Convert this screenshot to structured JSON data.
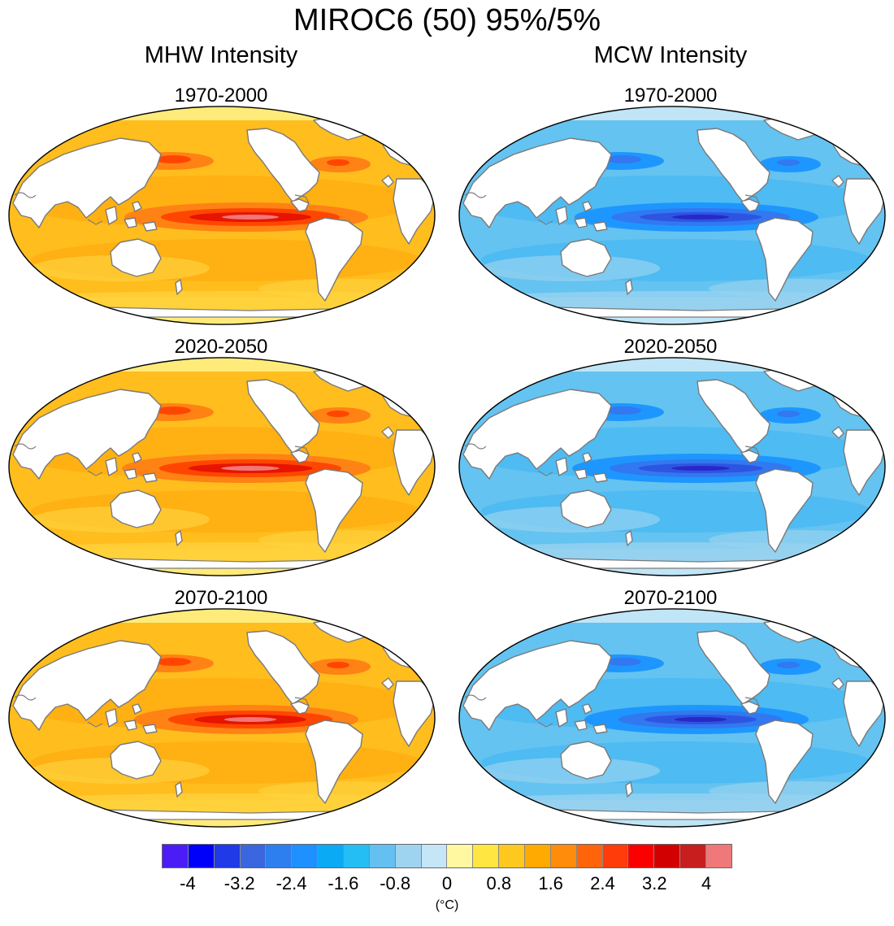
{
  "figure": {
    "title": "MIROC6 (50) 95%/5%",
    "columns": [
      "MHW Intensity",
      "MCW Intensity"
    ],
    "periods": [
      "1970-2000",
      "2020-2050",
      "2070-2100"
    ]
  },
  "colorbar": {
    "colors": [
      "#4b1cf5",
      "#0000fa",
      "#1f3ae6",
      "#3a66e0",
      "#2d7ff0",
      "#1e90ff",
      "#0aaaf5",
      "#24bef5",
      "#64c0f0",
      "#9fd4f0",
      "#c4e6f6",
      "#fff8a0",
      "#ffe640",
      "#ffc81e",
      "#ffaa00",
      "#ff8c0a",
      "#ff640a",
      "#ff3c0a",
      "#fa0000",
      "#d20000",
      "#c81e1e",
      "#f07878"
    ],
    "tick_labels": [
      "-4",
      "-3.2",
      "-2.4",
      "-1.6",
      "-0.8",
      "0",
      "0.8",
      "1.6",
      "2.4",
      "3.2",
      "4"
    ],
    "unit_label": "(°C)"
  },
  "chart_data": {
    "type": "heatmap",
    "title": "MIROC6 (50) 95%/5%",
    "panels": [
      {
        "column": "MHW Intensity",
        "period": "1970-2000",
        "dominant_range": [
          0.8,
          1.6
        ],
        "max_region": "equatorial eastern Pacific",
        "max_value": 4
      },
      {
        "column": "MHW Intensity",
        "period": "2020-2050",
        "dominant_range": [
          0.8,
          1.6
        ],
        "max_region": "equatorial eastern Pacific",
        "max_value": 4
      },
      {
        "column": "MHW Intensity",
        "period": "2070-2100",
        "dominant_range": [
          0.8,
          1.6
        ],
        "max_region": "equatorial eastern Pacific",
        "max_value": 3.6
      },
      {
        "column": "MCW Intensity",
        "period": "1970-2000",
        "dominant_range": [
          -1.2,
          -0.8
        ],
        "min_region": "equatorial eastern Pacific",
        "min_value": -2.4
      },
      {
        "column": "MCW Intensity",
        "period": "2020-2050",
        "dominant_range": [
          -1.2,
          -0.8
        ],
        "min_region": "equatorial eastern Pacific",
        "min_value": -2.8
      },
      {
        "column": "MCW Intensity",
        "period": "2070-2100",
        "dominant_range": [
          -1.2,
          -0.8
        ],
        "min_region": "equatorial eastern Pacific",
        "min_value": -2.4
      }
    ],
    "colorbar_range": [
      -4.4,
      4.4
    ],
    "colorbar_interval": 0.4,
    "unit": "(°C)"
  }
}
